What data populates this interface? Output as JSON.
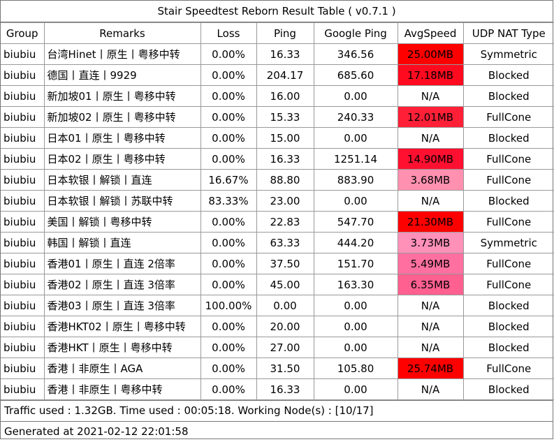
{
  "title": "Stair Speedtest Reborn Result Table ( v0.7.1 )",
  "columns": [
    "Group",
    "Remarks",
    "Loss",
    "Ping",
    "Google Ping",
    "AvgSpeed",
    "UDP NAT Type"
  ],
  "rows": [
    {
      "group": "biubiu",
      "remarks": "台湾Hinet丨原生丨粤移中转",
      "loss": "0.00%",
      "ping": "16.33",
      "gping": "346.56",
      "speed": "25.00MB",
      "speed_color": "#ff0000",
      "nat": "Symmetric"
    },
    {
      "group": "biubiu",
      "remarks": "德国丨直连丨9929",
      "loss": "0.00%",
      "ping": "204.17",
      "gping": "685.60",
      "speed": "17.18MB",
      "speed_color": "#ff0a1e",
      "nat": "Blocked"
    },
    {
      "group": "biubiu",
      "remarks": "新加坡01丨原生丨粤移中转",
      "loss": "0.00%",
      "ping": "16.00",
      "gping": "0.00",
      "speed": "N/A",
      "speed_color": "#ffffff",
      "nat": "Blocked"
    },
    {
      "group": "biubiu",
      "remarks": "新加坡02丨原生丨粤移中转",
      "loss": "0.00%",
      "ping": "15.33",
      "gping": "240.33",
      "speed": "12.01MB",
      "speed_color": "#ff2038",
      "nat": "FullCone"
    },
    {
      "group": "biubiu",
      "remarks": "日本01丨原生丨粤移中转",
      "loss": "0.00%",
      "ping": "15.00",
      "gping": "0.00",
      "speed": "N/A",
      "speed_color": "#ffffff",
      "nat": "Blocked"
    },
    {
      "group": "biubiu",
      "remarks": "日本02丨原生丨粤移中转",
      "loss": "0.00%",
      "ping": "16.33",
      "gping": "1251.14",
      "speed": "14.90MB",
      "speed_color": "#ff1030",
      "nat": "FullCone"
    },
    {
      "group": "biubiu",
      "remarks": "日本软银丨解锁丨直连",
      "loss": "16.67%",
      "ping": "88.80",
      "gping": "883.90",
      "speed": "3.68MB",
      "speed_color": "#ff90b0",
      "nat": "FullCone"
    },
    {
      "group": "biubiu",
      "remarks": "日本软银丨解锁丨苏联中转",
      "loss": "83.33%",
      "ping": "23.00",
      "gping": "0.00",
      "speed": "N/A",
      "speed_color": "#ffffff",
      "nat": "Blocked"
    },
    {
      "group": "biubiu",
      "remarks": "美国丨解锁丨粤移中转",
      "loss": "0.00%",
      "ping": "22.83",
      "gping": "547.70",
      "speed": "21.30MB",
      "speed_color": "#ff0000",
      "nat": "FullCone"
    },
    {
      "group": "biubiu",
      "remarks": "韩国丨解锁丨直连",
      "loss": "0.00%",
      "ping": "63.33",
      "gping": "444.20",
      "speed": "3.73MB",
      "speed_color": "#ff90b8",
      "nat": "Symmetric"
    },
    {
      "group": "biubiu",
      "remarks": "香港01丨原生丨直连 2倍率",
      "loss": "0.00%",
      "ping": "37.50",
      "gping": "151.70",
      "speed": "5.49MB",
      "speed_color": "#ff70a0",
      "nat": "FullCone"
    },
    {
      "group": "biubiu",
      "remarks": "香港02丨原生丨直连 3倍率",
      "loss": "0.00%",
      "ping": "45.00",
      "gping": "163.30",
      "speed": "6.35MB",
      "speed_color": "#ff6090",
      "nat": "FullCone"
    },
    {
      "group": "biubiu",
      "remarks": "香港03丨原生丨直连 3倍率",
      "loss": "100.00%",
      "ping": "0.00",
      "gping": "0.00",
      "speed": "N/A",
      "speed_color": "#ffffff",
      "nat": "Blocked"
    },
    {
      "group": "biubiu",
      "remarks": "香港HKT02丨原生丨粤移中转",
      "loss": "0.00%",
      "ping": "20.00",
      "gping": "0.00",
      "speed": "N/A",
      "speed_color": "#ffffff",
      "nat": "Blocked"
    },
    {
      "group": "biubiu",
      "remarks": "香港HKT丨原生丨粤移中转",
      "loss": "0.00%",
      "ping": "27.00",
      "gping": "0.00",
      "speed": "N/A",
      "speed_color": "#ffffff",
      "nat": "Blocked"
    },
    {
      "group": "biubiu",
      "remarks": "香港丨非原生丨AGA",
      "loss": "0.00%",
      "ping": "31.50",
      "gping": "105.80",
      "speed": "25.74MB",
      "speed_color": "#ff0000",
      "nat": "FullCone"
    },
    {
      "group": "biubiu",
      "remarks": "香港丨非原生丨粤移中转",
      "loss": "0.00%",
      "ping": "16.33",
      "gping": "0.00",
      "speed": "N/A",
      "speed_color": "#ffffff",
      "nat": "Blocked"
    }
  ],
  "footer_traffic": "Traffic used : 1.32GB. Time used : 00:05:18. Working Node(s) : [10/17]",
  "footer_generated": "Generated at 2021-02-12 22:01:58"
}
